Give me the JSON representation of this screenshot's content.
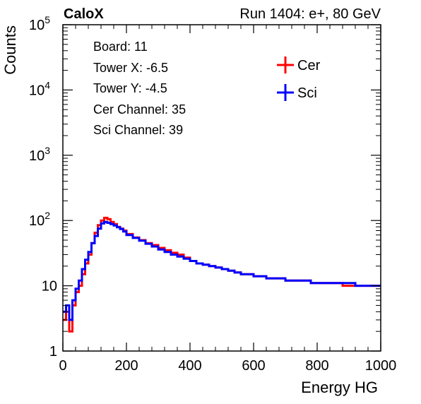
{
  "header": {
    "brand": "CaloX",
    "run_label": "Run 1404: e+, 80 GeV"
  },
  "info_box": {
    "lines": [
      "Board: 11",
      "Tower X: -6.5",
      "Tower Y: -4.5",
      "Cer Channel: 35",
      "Sci Channel: 39"
    ]
  },
  "colors": {
    "cer": "#ff0000",
    "sci": "#0000ff",
    "axis": "#000000"
  },
  "chart_data": {
    "type": "line",
    "style": "step histogram",
    "xlabel": "Energy HG",
    "ylabel": "Counts",
    "x_range": [
      0,
      1000
    ],
    "y_range": [
      1,
      100000
    ],
    "y_scale": "log",
    "x_ticks": [
      0,
      200,
      400,
      600,
      800,
      1000
    ],
    "x_tick_labels": [
      "0",
      "200",
      "400",
      "600",
      "800",
      "1000"
    ],
    "y_ticks": [
      1,
      10,
      100,
      1000,
      10000,
      100000
    ],
    "y_tick_labels": [
      {
        "base": "1",
        "exp": ""
      },
      {
        "base": "10",
        "exp": ""
      },
      {
        "base": "10",
        "exp": "2"
      },
      {
        "base": "10",
        "exp": "3"
      },
      {
        "base": "10",
        "exp": "4"
      },
      {
        "base": "10",
        "exp": "5"
      }
    ],
    "legend_position": "top-right",
    "grid": false,
    "x": [
      10,
      20,
      30,
      40,
      50,
      60,
      70,
      80,
      90,
      100,
      110,
      120,
      130,
      140,
      150,
      160,
      170,
      180,
      190,
      200,
      220,
      240,
      260,
      280,
      300,
      320,
      340,
      360,
      380,
      400,
      420,
      440,
      460,
      480,
      500,
      520,
      540,
      560,
      580,
      600,
      620,
      640,
      660,
      680,
      700,
      720,
      740,
      760,
      780,
      800,
      820,
      840,
      860,
      880,
      900,
      920,
      940,
      960,
      980,
      1000
    ],
    "series": [
      {
        "name": "Cer",
        "color": "#ff0000",
        "values": [
          3,
          4,
          2,
          5,
          8,
          10,
          15,
          22,
          30,
          45,
          65,
          85,
          100,
          110,
          105,
          95,
          88,
          80,
          75,
          70,
          62,
          55,
          50,
          45,
          42,
          38,
          35,
          32,
          30,
          27,
          24,
          22,
          21,
          20,
          19,
          18,
          17,
          16,
          15,
          15,
          14,
          14,
          13,
          13,
          13,
          12,
          12,
          12,
          12,
          11,
          11,
          11,
          11,
          11,
          10,
          10,
          10,
          10,
          10,
          10
        ]
      },
      {
        "name": "Sci",
        "color": "#0000ff",
        "values": [
          4,
          5,
          3,
          6,
          9,
          12,
          18,
          25,
          33,
          45,
          58,
          75,
          90,
          95,
          92,
          88,
          84,
          79,
          74,
          68,
          60,
          54,
          49,
          44,
          40,
          36,
          33,
          30,
          28,
          26,
          24,
          22,
          21,
          20,
          19,
          18,
          17,
          16,
          15,
          15,
          14,
          14,
          13,
          13,
          13,
          12,
          12,
          12,
          12,
          11,
          11,
          11,
          11,
          11,
          11,
          11,
          10,
          10,
          10,
          10
        ]
      }
    ]
  }
}
